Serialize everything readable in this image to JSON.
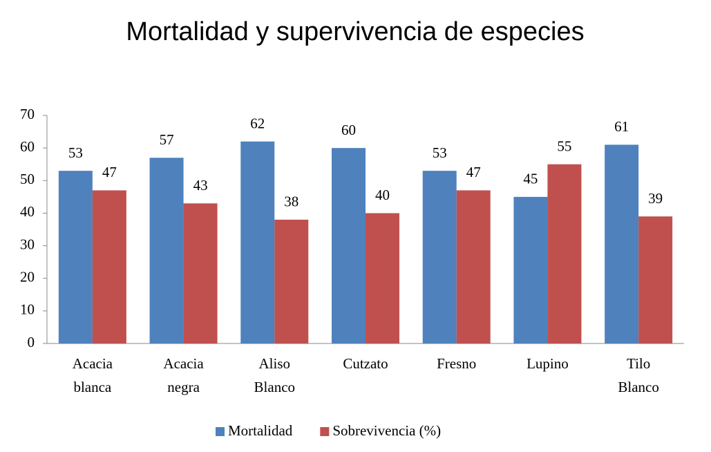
{
  "chart_data": {
    "type": "bar",
    "title": "Mortalidad y supervivencia de especies",
    "categories": [
      "Acacia blanca",
      "Acacia negra",
      "Aliso Blanco",
      "Cutzato",
      "Fresno",
      "Lupino",
      "Tilo Blanco"
    ],
    "series": [
      {
        "name": "Mortalidad",
        "color": "#4f81bd",
        "values": [
          53,
          57,
          62,
          60,
          53,
          45,
          61
        ]
      },
      {
        "name": "Sobrevivencia (%)",
        "color": "#c0504d",
        "values": [
          47,
          43,
          38,
          40,
          47,
          55,
          39
        ]
      }
    ],
    "ylim": [
      0,
      70
    ],
    "yticks": [
      0,
      10,
      20,
      30,
      40,
      50,
      60,
      70
    ],
    "grid": false,
    "legend": "bottom"
  }
}
